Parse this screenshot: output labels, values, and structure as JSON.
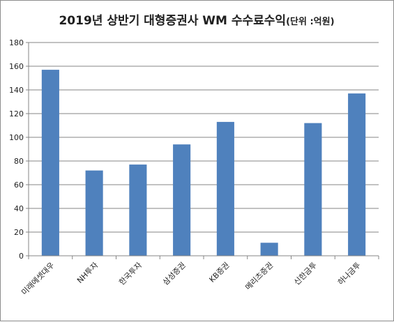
{
  "chart_data": {
    "type": "bar",
    "title": "2019년 상반기 대형증권사 WM 수수료수익",
    "subtitle": "(단위 :억원)",
    "categories": [
      "미래에셋대우",
      "NH투자",
      "한국투자",
      "삼성증권",
      "KB증권",
      "메리츠증권",
      "신한금투",
      "하나금투"
    ],
    "series": [
      {
        "values": [
          157,
          72,
          77,
          94,
          113,
          11,
          112,
          137
        ]
      }
    ],
    "xlabel": "",
    "ylabel": "",
    "ylim": [
      0,
      180
    ],
    "yticks": [
      0,
      20,
      40,
      60,
      80,
      100,
      120,
      140,
      160,
      180
    ],
    "grid": true,
    "legend": "none",
    "colors": {
      "bar": "#4f81bd",
      "grid": "#868686",
      "axis": "#868686"
    }
  }
}
